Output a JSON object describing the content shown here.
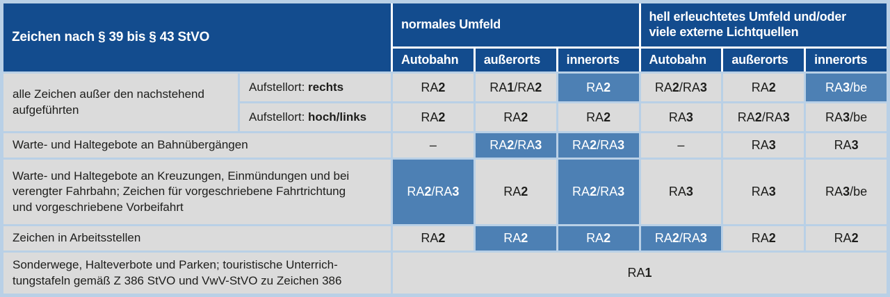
{
  "colors": {
    "header_blue": "#134c8e",
    "highlight_blue": "#4d80b4",
    "cell_gray": "#dbdbdb",
    "grid_light_blue": "#b9d0e6"
  },
  "table": {
    "corner_header": "Zeichen nach § 39 bis § 43 StVO",
    "group_headers": [
      "normales Umfeld",
      "hell erleuchtetes Umfeld und/oder\nviele externe Lichtquellen"
    ],
    "sub_headers": [
      "Autobahn",
      "außerorts",
      "innerorts",
      "Autobahn",
      "außerorts",
      "innerorts"
    ],
    "rows": [
      {
        "label": "alle Zeichen außer den nachstehend\naufgeführten",
        "sub_rows": [
          {
            "prefix": "Aufstellort: ",
            "bold": "rechts",
            "cells": [
              {
                "v": "RA2",
                "hl": false
              },
              {
                "v": "RA1/RA2",
                "hl": false
              },
              {
                "v": "RA2",
                "hl": true
              },
              {
                "v": "RA2/RA3",
                "hl": false
              },
              {
                "v": "RA2",
                "hl": false
              },
              {
                "v": "RA3/be",
                "hl": true
              }
            ]
          },
          {
            "prefix": "Aufstellort: ",
            "bold": "hoch/links",
            "cells": [
              {
                "v": "RA2",
                "hl": false
              },
              {
                "v": "RA2",
                "hl": false
              },
              {
                "v": "RA2",
                "hl": false
              },
              {
                "v": "RA3",
                "hl": false
              },
              {
                "v": "RA2/RA3",
                "hl": false
              },
              {
                "v": "RA3/be",
                "hl": false
              }
            ]
          }
        ]
      },
      {
        "label": "Warte- und Haltegebote an Bahnübergängen",
        "cells": [
          {
            "v": "–",
            "hl": false
          },
          {
            "v": "RA2/RA3",
            "hl": true
          },
          {
            "v": "RA2/RA3",
            "hl": true
          },
          {
            "v": "–",
            "hl": false
          },
          {
            "v": "RA3",
            "hl": false
          },
          {
            "v": "RA3",
            "hl": false
          }
        ]
      },
      {
        "label": "Warte- und Haltegebote an Kreuzungen, Einmündungen und bei\nverengter Fahrbahn; Zeichen für vorgeschriebene Fahrtrichtung\nund vorgeschriebene Vorbeifahrt",
        "cells": [
          {
            "v": "RA2/RA3",
            "hl": true
          },
          {
            "v": "RA2",
            "hl": false
          },
          {
            "v": "RA2/RA3",
            "hl": true
          },
          {
            "v": "RA3",
            "hl": false
          },
          {
            "v": "RA3",
            "hl": false
          },
          {
            "v": "RA3/be",
            "hl": false
          }
        ]
      },
      {
        "label": "Zeichen in Arbeitsstellen",
        "cells": [
          {
            "v": "RA2",
            "hl": false
          },
          {
            "v": "RA2",
            "hl": true
          },
          {
            "v": "RA2",
            "hl": true
          },
          {
            "v": "RA2/RA3",
            "hl": true
          },
          {
            "v": "RA2",
            "hl": false
          },
          {
            "v": "RA2",
            "hl": false
          }
        ]
      },
      {
        "label": "Sonderwege, Halteverbote und Parken; touristische Unterrich-\ntungstafeln gemäß Z 386 StVO und VwV-StVO zu Zeichen 386",
        "cells": [
          {
            "v": "RA1",
            "hl": false,
            "span": 6
          }
        ]
      }
    ]
  }
}
